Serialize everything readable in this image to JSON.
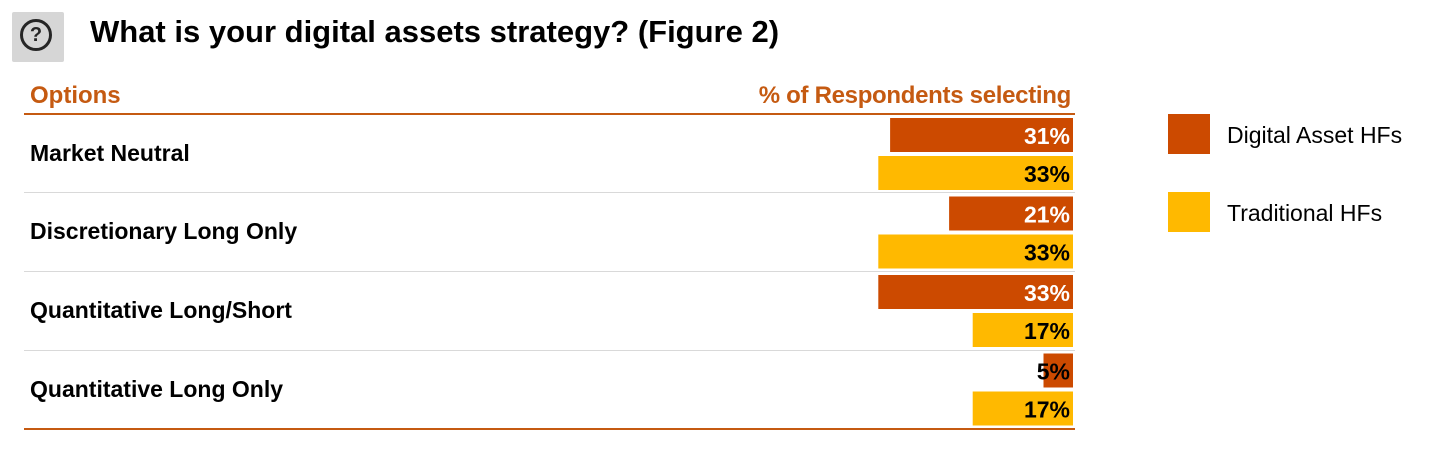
{
  "title": "What is your digital assets strategy? (Figure 2)",
  "help_icon": "?",
  "colors": {
    "digital": "#cc4a00",
    "traditional": "#ffb900",
    "accent": "#c55a11"
  },
  "chart_data": {
    "type": "bar",
    "orientation": "horizontal",
    "title": "What is your digital assets strategy? (Figure 2)",
    "category_header": "Options",
    "value_header": "% of Respondents selecting",
    "categories": [
      "Market Neutral",
      "Discretionary Long Only",
      "Quantitative Long/Short",
      "Quantitative Long Only"
    ],
    "series": [
      {
        "name": "Digital Asset HFs",
        "values": [
          31,
          21,
          33,
          5
        ],
        "labels": [
          "31%",
          "21%",
          "33%",
          "5%"
        ]
      },
      {
        "name": "Traditional HFs",
        "values": [
          33,
          33,
          17,
          17
        ],
        "labels": [
          "33%",
          "33%",
          "17%",
          "17%"
        ]
      }
    ],
    "xlim": [
      0,
      100
    ],
    "unit": "%",
    "legend": "right"
  }
}
